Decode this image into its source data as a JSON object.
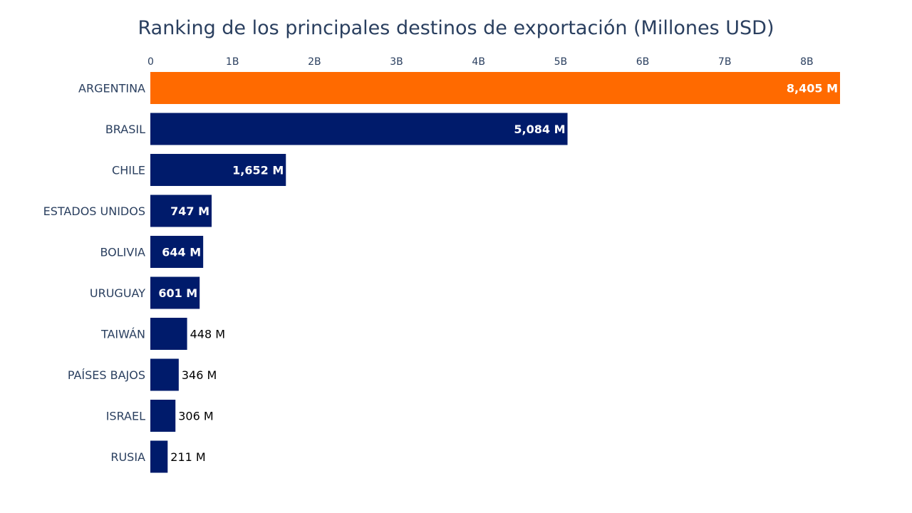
{
  "chart_data": {
    "type": "bar",
    "orientation": "horizontal",
    "title": "Ranking de los principales destinos de exportación (Millones USD)",
    "categories": [
      "ARGENTINA",
      "BRASIL",
      "CHILE",
      "ESTADOS UNIDOS",
      "BOLIVIA",
      "URUGUAY",
      "TAIWÁN",
      "PAÍSES BAJOS",
      "ISRAEL",
      "RUSIA"
    ],
    "values": [
      8405,
      5084,
      1652,
      747,
      644,
      601,
      448,
      346,
      306,
      211
    ],
    "value_labels": [
      "8,405 M",
      "5,084 M",
      "1,652 M",
      "747 M",
      "644 M",
      "601 M",
      "448 M",
      "346 M",
      "306 M",
      "211 M"
    ],
    "x_ticks": [
      {
        "value": 0,
        "label": "0"
      },
      {
        "value": 1000,
        "label": "1B"
      },
      {
        "value": 2000,
        "label": "2B"
      },
      {
        "value": 3000,
        "label": "3B"
      },
      {
        "value": 4000,
        "label": "4B"
      },
      {
        "value": 5000,
        "label": "5B"
      },
      {
        "value": 6000,
        "label": "6B"
      },
      {
        "value": 7000,
        "label": "7B"
      },
      {
        "value": 8000,
        "label": "8B"
      }
    ],
    "xlim": [
      0,
      8405
    ],
    "xaxis_side": "top",
    "xlabel": "",
    "ylabel": "",
    "grid": false,
    "colors": {
      "highlight": "#FF6A00",
      "default": "#001B6B",
      "text": "#2a3f5f"
    },
    "highlight_index": 0
  }
}
